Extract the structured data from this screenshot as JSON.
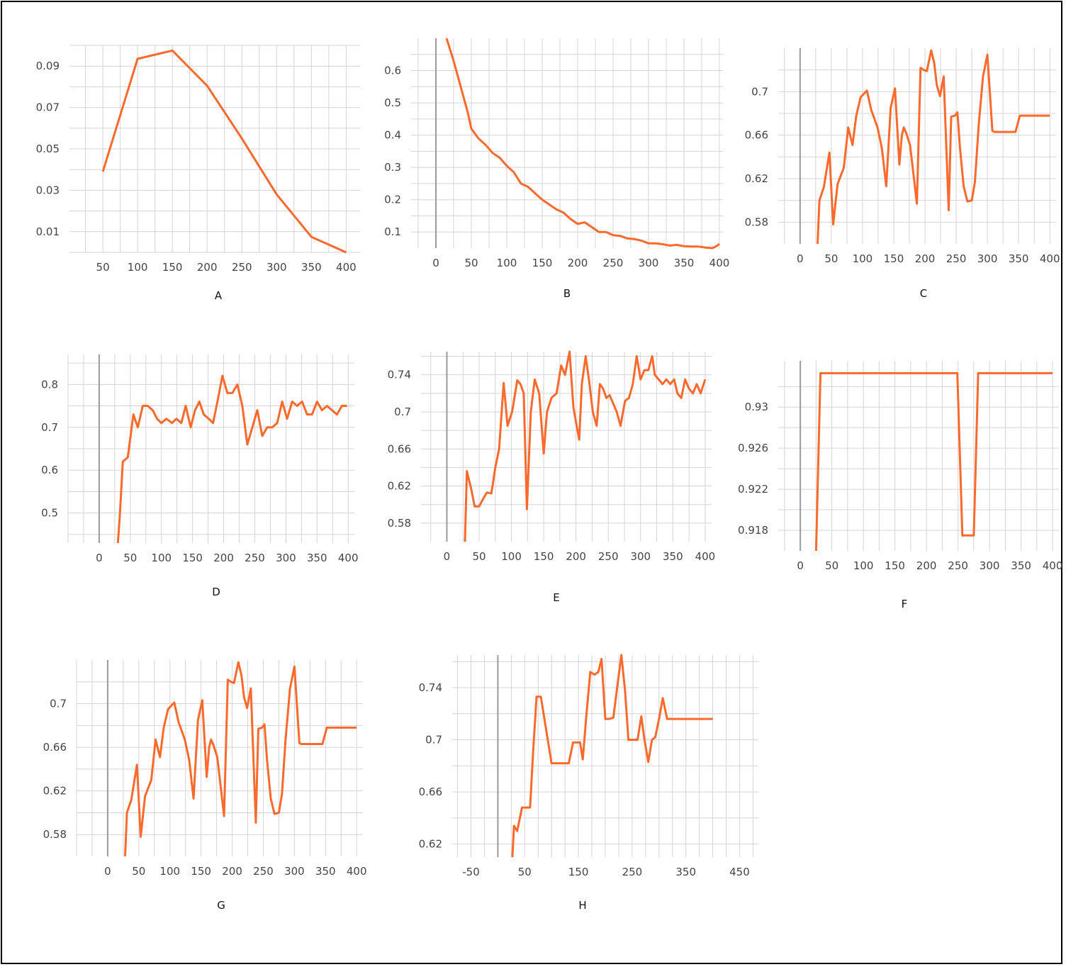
{
  "theme": {
    "line_color": "#fb6a2c",
    "grid_color": "#d4d4d4",
    "zero_line_color": "#9a9a9a",
    "text_color": "#444444"
  },
  "chart_data": [
    {
      "id": "A",
      "type": "line",
      "label": "A",
      "grid": true,
      "xlim": [
        2,
        420
      ],
      "ylim": [
        0,
        0.1
      ],
      "xticks": [
        50,
        100,
        150,
        200,
        250,
        300,
        350,
        400
      ],
      "yticks": [
        0.01,
        0.03,
        0.05,
        0.07,
        0.09
      ],
      "ytick_labels": [
        "0.01",
        "0.03",
        "0.05",
        "0.07",
        "0.09"
      ],
      "x_zero_line": false,
      "x": [
        50,
        100,
        150,
        200,
        250,
        300,
        350,
        400
      ],
      "y": [
        0.039,
        0.0935,
        0.0975,
        0.0805,
        0.055,
        0.028,
        0.0075,
        0.0
      ]
    },
    {
      "id": "B",
      "type": "line",
      "label": "B",
      "grid": true,
      "xlim": [
        -35,
        405
      ],
      "ylim": [
        0.05,
        0.7
      ],
      "xticks": [
        0,
        50,
        100,
        150,
        200,
        250,
        300,
        350,
        400
      ],
      "yticks": [
        0.1,
        0.2,
        0.3,
        0.4,
        0.5,
        0.6
      ],
      "ytick_labels": [
        "0.1",
        "0.2",
        "0.3",
        "0.4",
        "0.5",
        "0.6"
      ],
      "x_zero_line": true,
      "x": [
        15,
        25,
        35,
        45,
        50,
        60,
        70,
        80,
        90,
        100,
        110,
        120,
        130,
        140,
        150,
        160,
        170,
        180,
        190,
        200,
        210,
        220,
        230,
        240,
        250,
        260,
        270,
        280,
        290,
        300,
        310,
        320,
        330,
        340,
        350,
        360,
        370,
        380,
        390,
        395,
        400
      ],
      "y": [
        0.7,
        0.63,
        0.55,
        0.47,
        0.42,
        0.39,
        0.37,
        0.345,
        0.33,
        0.305,
        0.285,
        0.25,
        0.24,
        0.22,
        0.2,
        0.185,
        0.17,
        0.16,
        0.14,
        0.125,
        0.13,
        0.115,
        0.1,
        0.1,
        0.09,
        0.088,
        0.08,
        0.078,
        0.073,
        0.065,
        0.065,
        0.062,
        0.058,
        0.06,
        0.056,
        0.055,
        0.055,
        0.052,
        0.05,
        0.055,
        0.063
      ]
    },
    {
      "id": "C",
      "type": "line",
      "label": "C",
      "grid": true,
      "xlim": [
        -35,
        410
      ],
      "ylim": [
        0.56,
        0.74
      ],
      "xticks": [
        0,
        50,
        100,
        150,
        200,
        250,
        300,
        350,
        400
      ],
      "yticks": [
        0.58,
        0.62,
        0.66,
        0.7
      ],
      "ytick_labels": [
        "0.58",
        "0.62",
        "0.66",
        "0.7"
      ],
      "x_zero_line": true,
      "x": [
        28,
        31,
        38,
        47,
        53,
        60,
        70,
        77,
        84,
        90,
        97,
        107,
        114,
        124,
        131,
        138,
        145,
        152,
        159,
        163,
        166,
        170,
        176,
        180,
        187,
        193,
        198,
        203,
        210,
        215,
        219,
        224,
        230,
        238,
        242,
        248,
        252,
        256,
        262,
        268,
        275,
        280,
        286,
        293,
        300,
        308,
        311,
        317,
        323,
        330,
        345,
        352,
        357,
        400
      ],
      "y": [
        0.56,
        0.6,
        0.612,
        0.644,
        0.578,
        0.615,
        0.63,
        0.667,
        0.651,
        0.678,
        0.695,
        0.701,
        0.683,
        0.667,
        0.648,
        0.613,
        0.685,
        0.703,
        0.633,
        0.66,
        0.667,
        0.662,
        0.651,
        0.632,
        0.597,
        0.722,
        0.72,
        0.719,
        0.738,
        0.726,
        0.706,
        0.696,
        0.714,
        0.591,
        0.677,
        0.678,
        0.681,
        0.649,
        0.613,
        0.599,
        0.6,
        0.617,
        0.669,
        0.714,
        0.734,
        0.664,
        0.663,
        0.663,
        0.663,
        0.663,
        0.663,
        0.678,
        0.678,
        0.678
      ]
    },
    {
      "id": "D",
      "type": "line",
      "label": "D",
      "grid": true,
      "xlim": [
        -50,
        410
      ],
      "ylim": [
        0.43,
        0.87
      ],
      "xticks": [
        0,
        50,
        100,
        150,
        200,
        250,
        300,
        350,
        400
      ],
      "yticks": [
        0.5,
        0.6,
        0.7,
        0.8
      ],
      "ytick_labels": [
        "0.5",
        "0.6",
        "0.7",
        "0.8"
      ],
      "x_zero_line": true,
      "x": [
        30,
        33,
        38,
        46,
        55,
        62,
        70,
        78,
        86,
        93,
        100,
        108,
        117,
        124,
        132,
        139,
        147,
        154,
        161,
        168,
        176,
        183,
        190,
        198,
        206,
        214,
        222,
        230,
        238,
        246,
        254,
        262,
        270,
        278,
        286,
        294,
        302,
        310,
        318,
        326,
        334,
        342,
        350,
        358,
        366,
        374,
        382,
        390,
        398
      ],
      "y": [
        0.43,
        0.49,
        0.62,
        0.63,
        0.73,
        0.7,
        0.75,
        0.75,
        0.74,
        0.72,
        0.71,
        0.72,
        0.71,
        0.72,
        0.71,
        0.75,
        0.7,
        0.74,
        0.76,
        0.73,
        0.72,
        0.71,
        0.76,
        0.82,
        0.78,
        0.78,
        0.8,
        0.75,
        0.66,
        0.7,
        0.74,
        0.68,
        0.7,
        0.7,
        0.71,
        0.76,
        0.72,
        0.76,
        0.75,
        0.76,
        0.73,
        0.73,
        0.76,
        0.74,
        0.75,
        0.74,
        0.73,
        0.75,
        0.75
      ]
    },
    {
      "id": "E",
      "type": "line",
      "label": "E",
      "grid": true,
      "xlim": [
        -40,
        410
      ],
      "ylim": [
        0.56,
        0.765
      ],
      "xticks": [
        0,
        50,
        100,
        150,
        200,
        250,
        300,
        350,
        400
      ],
      "yticks": [
        0.58,
        0.62,
        0.66,
        0.7,
        0.74
      ],
      "ytick_labels": [
        "0.58",
        "0.62",
        "0.66",
        "0.7",
        "0.74"
      ],
      "x_zero_line": true,
      "x": [
        28,
        31,
        38,
        43,
        50,
        56,
        62,
        69,
        75,
        81,
        88,
        94,
        101,
        109,
        114,
        119,
        124,
        130,
        136,
        143,
        150,
        155,
        162,
        170,
        177,
        183,
        190,
        196,
        201,
        205,
        209,
        215,
        220,
        226,
        232,
        237,
        242,
        247,
        252,
        257,
        263,
        269,
        276,
        282,
        288,
        294,
        300,
        306,
        312,
        318,
        322,
        328,
        334,
        340,
        346,
        352,
        357,
        363,
        369,
        375,
        381,
        387,
        393,
        400
      ],
      "y": [
        0.56,
        0.636,
        0.616,
        0.598,
        0.598,
        0.606,
        0.613,
        0.612,
        0.64,
        0.66,
        0.731,
        0.685,
        0.7,
        0.734,
        0.73,
        0.72,
        0.595,
        0.7,
        0.735,
        0.72,
        0.655,
        0.7,
        0.715,
        0.72,
        0.75,
        0.74,
        0.765,
        0.705,
        0.685,
        0.67,
        0.73,
        0.76,
        0.735,
        0.7,
        0.685,
        0.73,
        0.725,
        0.715,
        0.718,
        0.71,
        0.7,
        0.685,
        0.712,
        0.715,
        0.73,
        0.76,
        0.735,
        0.745,
        0.745,
        0.76,
        0.74,
        0.735,
        0.73,
        0.735,
        0.73,
        0.735,
        0.72,
        0.715,
        0.735,
        0.725,
        0.72,
        0.73,
        0.72,
        0.735
      ]
    },
    {
      "id": "F",
      "type": "line",
      "label": "F",
      "grid": true,
      "xlim": [
        -35,
        410
      ],
      "ylim": [
        0.916,
        0.9345
      ],
      "xticks": [
        0,
        50,
        100,
        150,
        200,
        250,
        300,
        350,
        400
      ],
      "yticks": [
        0.918,
        0.922,
        0.926,
        0.93
      ],
      "ytick_labels": [
        "0.918",
        "0.922",
        "0.926",
        "0.93"
      ],
      "x_zero_line": true,
      "x": [
        25,
        32,
        249,
        257,
        275,
        282,
        400
      ],
      "y": [
        0.916,
        0.9333,
        0.9333,
        0.9175,
        0.9175,
        0.9333,
        0.9333
      ]
    },
    {
      "id": "G",
      "type": "line",
      "label": "G",
      "grid": true,
      "xlim": [
        -50,
        410
      ],
      "ylim": [
        0.56,
        0.74
      ],
      "xticks": [
        0,
        50,
        100,
        150,
        200,
        250,
        300,
        350,
        400
      ],
      "yticks": [
        0.58,
        0.62,
        0.66,
        0.7
      ],
      "ytick_labels": [
        "0.58",
        "0.62",
        "0.66",
        "0.7"
      ],
      "x_zero_line": true,
      "x": [
        28,
        31,
        38,
        47,
        53,
        60,
        70,
        77,
        84,
        90,
        97,
        107,
        114,
        124,
        131,
        138,
        145,
        152,
        159,
        163,
        166,
        170,
        176,
        180,
        187,
        193,
        198,
        203,
        210,
        215,
        219,
        224,
        230,
        238,
        242,
        248,
        252,
        256,
        262,
        268,
        275,
        280,
        286,
        293,
        300,
        308,
        311,
        317,
        323,
        330,
        345,
        352,
        357,
        400
      ],
      "y": [
        0.56,
        0.6,
        0.612,
        0.644,
        0.578,
        0.615,
        0.63,
        0.667,
        0.651,
        0.678,
        0.695,
        0.701,
        0.683,
        0.667,
        0.648,
        0.613,
        0.685,
        0.703,
        0.633,
        0.66,
        0.667,
        0.662,
        0.651,
        0.632,
        0.597,
        0.722,
        0.72,
        0.719,
        0.738,
        0.726,
        0.706,
        0.696,
        0.714,
        0.591,
        0.677,
        0.678,
        0.681,
        0.649,
        0.613,
        0.599,
        0.6,
        0.617,
        0.669,
        0.714,
        0.734,
        0.664,
        0.663,
        0.663,
        0.663,
        0.663,
        0.663,
        0.678,
        0.678,
        0.678
      ]
    },
    {
      "id": "H",
      "type": "line",
      "label": "H",
      "grid": true,
      "xlim": [
        -85,
        485
      ],
      "ylim": [
        0.61,
        0.765
      ],
      "xticks": [
        -50,
        50,
        150,
        250,
        350,
        450
      ],
      "xgrid_step": 25,
      "yticks": [
        0.62,
        0.66,
        0.7,
        0.74
      ],
      "ytick_labels": [
        "0.62",
        "0.66",
        "0.7",
        "0.74"
      ],
      "x_zero_line": true,
      "x": [
        27,
        30,
        36,
        45,
        52,
        60,
        66,
        72,
        80,
        87,
        100,
        116,
        126,
        132,
        140,
        147,
        153,
        158,
        165,
        172,
        180,
        187,
        193,
        200,
        207,
        215,
        222,
        230,
        237,
        243,
        248,
        253,
        260,
        267,
        273,
        280,
        287,
        293,
        300,
        307,
        315,
        323,
        330,
        337,
        345,
        353,
        400
      ],
      "y": [
        0.61,
        0.634,
        0.63,
        0.648,
        0.648,
        0.648,
        0.693,
        0.733,
        0.733,
        0.715,
        0.682,
        0.682,
        0.682,
        0.682,
        0.698,
        0.698,
        0.698,
        0.685,
        0.72,
        0.752,
        0.75,
        0.752,
        0.762,
        0.716,
        0.716,
        0.717,
        0.74,
        0.765,
        0.737,
        0.7,
        0.7,
        0.7,
        0.7,
        0.718,
        0.7,
        0.683,
        0.7,
        0.702,
        0.716,
        0.732,
        0.716,
        0.716,
        0.716,
        0.716,
        0.716,
        0.716,
        0.716
      ]
    }
  ]
}
